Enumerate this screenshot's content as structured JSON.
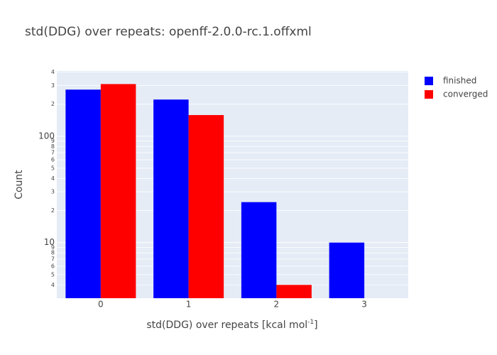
{
  "chart_data": {
    "type": "bar",
    "title": "std(DDG) over repeats: openff-2.0.0-rc.1.offxml",
    "xlabel": {
      "text": "std(DDG) over repeats [kcal mol",
      "sup": "-1",
      "tail": "]"
    },
    "ylabel": "Count",
    "categories": [
      "0",
      "1",
      "2",
      "3"
    ],
    "series": [
      {
        "name": "finished",
        "color": "#0000ff",
        "values": [
          274,
          221,
          24,
          10
        ]
      },
      {
        "name": "converged",
        "color": "#ff0000",
        "values": [
          309,
          158,
          4,
          null
        ]
      }
    ],
    "log_y": true,
    "ylim": [
      3,
      410
    ],
    "yticks": [
      4,
      5,
      6,
      7,
      8,
      9,
      10,
      {
        "value": 20,
        "label": "2"
      },
      {
        "value": 30,
        "label": "3"
      },
      {
        "value": 40,
        "label": "4"
      },
      {
        "value": 50,
        "label": "5"
      },
      {
        "value": 60,
        "label": "6"
      },
      {
        "value": 70,
        "label": "7"
      },
      {
        "value": 80,
        "label": "8"
      },
      {
        "value": 90,
        "label": "9"
      },
      100,
      {
        "value": 200,
        "label": "2"
      },
      {
        "value": 300,
        "label": "3"
      },
      {
        "value": 400,
        "label": "4"
      }
    ],
    "grid": true,
    "legend": "top-right"
  }
}
